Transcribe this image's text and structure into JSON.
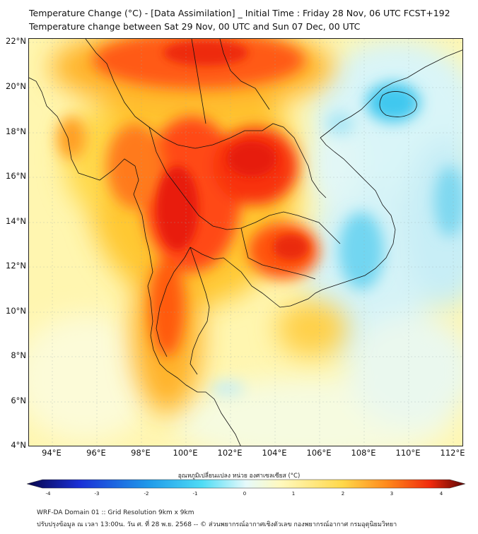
{
  "header": {
    "title": "Temperature Change (°C) - [Data Assimilation] _ Initial Time : Friday 28 Nov, 06 UTC FCST+192",
    "subtitle": "Temperature change between Sat 29 Nov, 00 UTC and Sun 07 Dec, 00 UTC"
  },
  "axes": {
    "lat_labels": [
      "22°N",
      "20°N",
      "18°N",
      "16°N",
      "14°N",
      "12°N",
      "10°N",
      "8°N",
      "6°N",
      "4°N"
    ],
    "lon_labels": [
      "94°E",
      "96°E",
      "98°E",
      "100°E",
      "102°E",
      "104°E",
      "106°E",
      "108°E",
      "110°E",
      "112°E"
    ]
  },
  "colorbar": {
    "title": "อุณหภูมิเปลี่ยนแปลง หน่วย องศาเซลเซียส (°C)",
    "ticks": [
      "-4",
      "-3",
      "-2",
      "-1",
      "0",
      "1",
      "2",
      "3",
      "4"
    ],
    "colors": [
      "#07054a",
      "#1a2fd6",
      "#1f9bea",
      "#4fdcf5",
      "#e6fafb",
      "#fff9bd",
      "#ffd84a",
      "#ff8a1c",
      "#f02a0c",
      "#5a0605"
    ]
  },
  "footer": {
    "line1": "WRF-DA Domain 01 :: Grid Resolution 9km x 9km",
    "line2": "ปรับปรุงข้อมูล ณ เวลา 13:00น. วัน ศ. ที่ 28 พ.ย. 2568 -- © ส่วนพยากรณ์อากาศเชิงตัวเลข กองพยากรณ์อากาศ กรมอุตุนิยมวิทยา"
  }
}
